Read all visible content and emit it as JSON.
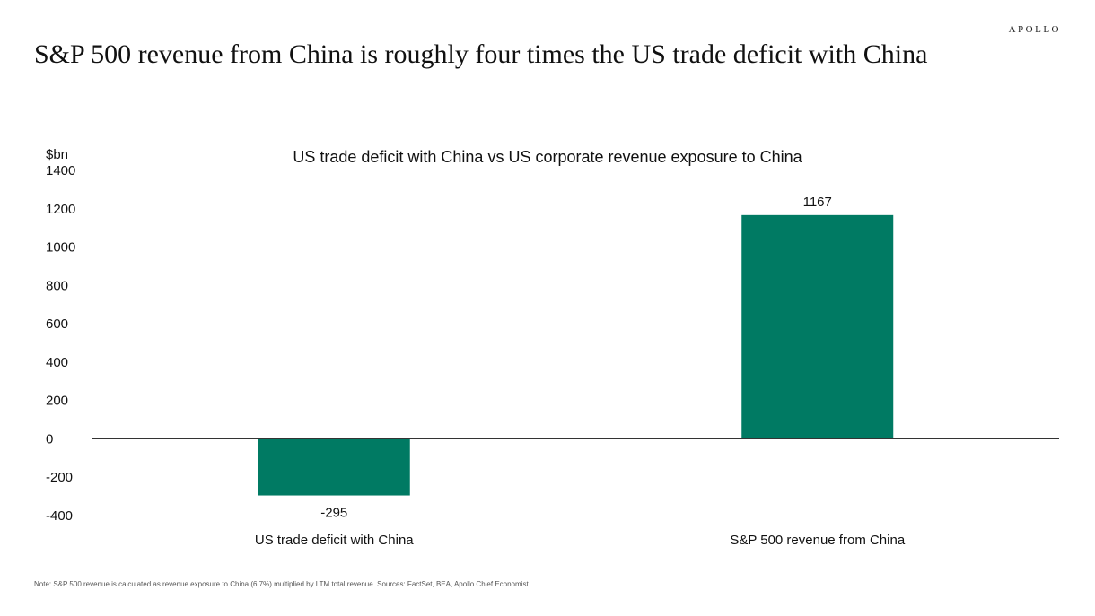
{
  "brand": "APOLLO",
  "headline": "S&P 500 revenue from China is roughly four times the US trade deficit with China",
  "footnote": "Note: S&P 500 revenue is calculated as revenue exposure to China (6.7%) multiplied by LTM total revenue. Sources: FactSet, BEA, Apollo Chief Economist",
  "colors": {
    "bar": "#007A63",
    "axis": "#333333",
    "text": "#111111"
  },
  "chart_data": {
    "type": "bar",
    "title": "US trade deficit with China vs US corporate revenue exposure to China",
    "ylabel": "$bn",
    "xlabel": "",
    "categories": [
      "US trade deficit with China",
      "S&P 500 revenue from China"
    ],
    "values": [
      -295,
      1167
    ],
    "data_labels": [
      "-295",
      "1167"
    ],
    "ylim": [
      -400,
      1400
    ],
    "yticks": [
      1400,
      1200,
      1000,
      800,
      600,
      400,
      200,
      0,
      -200,
      -400
    ],
    "grid": false,
    "legend": "none"
  }
}
